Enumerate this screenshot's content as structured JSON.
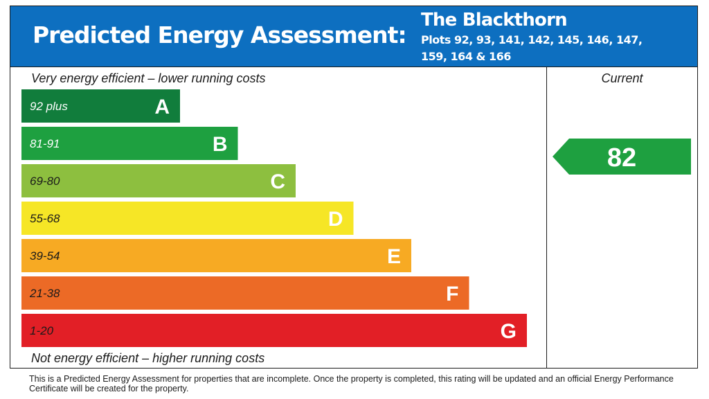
{
  "header": {
    "title": "Predicted Energy Assessment:",
    "house_name": "The Blackthorn",
    "plots": "Plots 92, 93, 141, 142, 145, 146, 147, 159, 164 & 166"
  },
  "labels": {
    "top": "Very energy efficient – lower running costs",
    "bottom": "Not energy efficient – higher running costs",
    "current_header": "Current"
  },
  "footnote": "This is a Predicted Energy Assessment for properties that are incomplete. Once the property is completed, this rating will be updated and an official Energy Performance Certificate will be created for the property.",
  "chart_data": {
    "type": "bar",
    "orientation": "horizontal",
    "categories": [
      "A",
      "B",
      "C",
      "D",
      "E",
      "F",
      "G"
    ],
    "ranges": [
      "92 plus",
      "81-91",
      "69-80",
      "55-68",
      "39-54",
      "21-38",
      "1-20"
    ],
    "colors": [
      "#117d3c",
      "#1ea040",
      "#8dbf3f",
      "#f6e626",
      "#f7aa23",
      "#ec6a26",
      "#e21f26"
    ],
    "range_text_colors": [
      "#ffffff",
      "#ffffff",
      "#1a1a1a",
      "#1a1a1a",
      "#1a1a1a",
      "#1a1a1a",
      "#1a1a1a"
    ],
    "current": {
      "value": 82,
      "band": "B",
      "color": "#1ea040"
    }
  }
}
